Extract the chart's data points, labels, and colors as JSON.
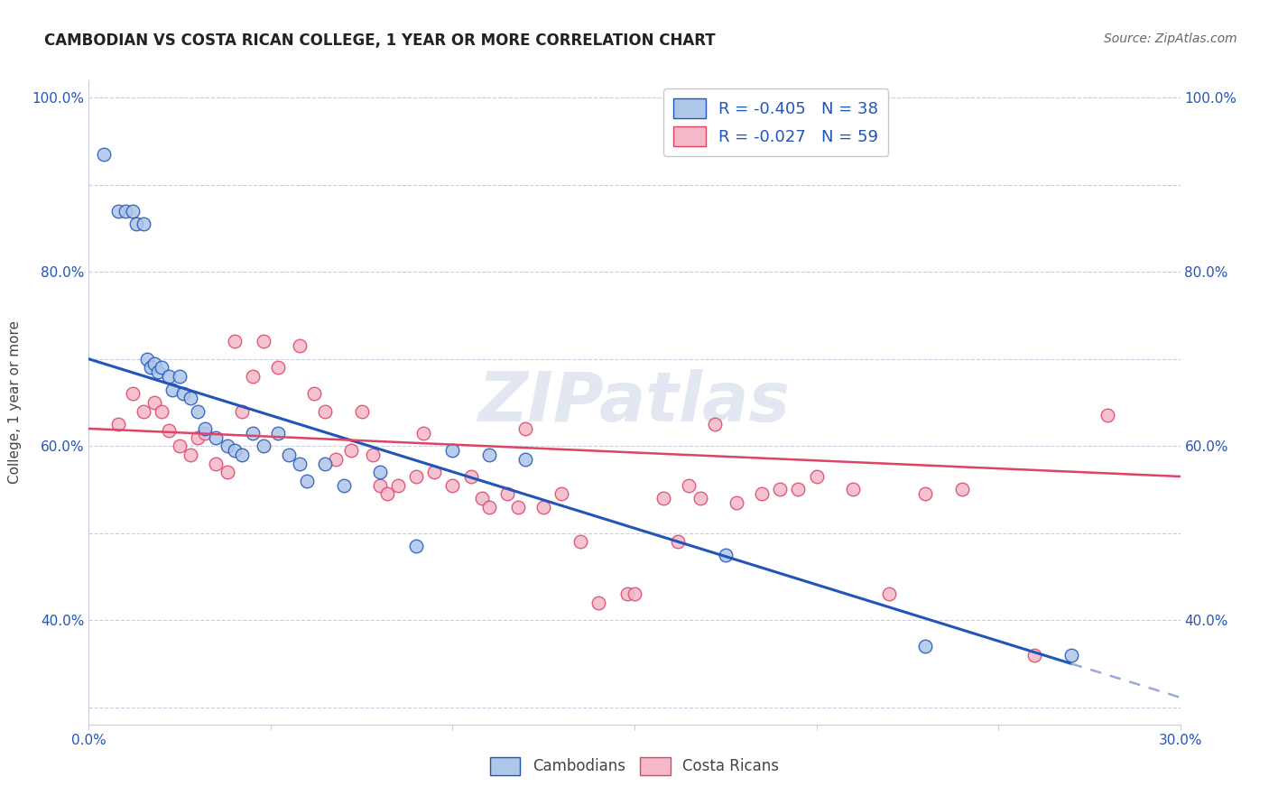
{
  "title": "CAMBODIAN VS COSTA RICAN COLLEGE, 1 YEAR OR MORE CORRELATION CHART",
  "source": "Source: ZipAtlas.com",
  "ylabel": "College, 1 year or more",
  "xlim": [
    0.0,
    0.3
  ],
  "ylim": [
    0.28,
    1.02
  ],
  "xtick_positions": [
    0.0,
    0.05,
    0.1,
    0.15,
    0.2,
    0.25,
    0.3
  ],
  "xticklabels": [
    "0.0%",
    "",
    "",
    "",
    "",
    "",
    "30.0%"
  ],
  "ytick_positions": [
    0.3,
    0.4,
    0.5,
    0.6,
    0.7,
    0.8,
    0.9,
    1.0
  ],
  "ytick_labels_left": [
    "",
    "40.0%",
    "",
    "60.0%",
    "",
    "80.0%",
    "",
    "100.0%"
  ],
  "ytick_labels_right": [
    "",
    "40.0%",
    "",
    "60.0%",
    "",
    "80.0%",
    "",
    "100.0%"
  ],
  "legend_r1": "R = -0.405",
  "legend_n1": "N = 38",
  "legend_r2": "R = -0.027",
  "legend_n2": "N = 59",
  "cambodian_color": "#aec6e8",
  "costa_rican_color": "#f4b8c8",
  "line_blue": "#2255bb",
  "line_pink": "#dd4466",
  "line_dashed_color": "#99aad4",
  "watermark": "ZIPatlas",
  "blue_line_x0": 0.0,
  "blue_line_y0": 0.7,
  "blue_line_x1": 0.27,
  "blue_line_y1": 0.35,
  "pink_line_x0": 0.0,
  "pink_line_y0": 0.62,
  "pink_line_x1": 0.3,
  "pink_line_y1": 0.565,
  "cambodian_x": [
    0.004,
    0.008,
    0.01,
    0.012,
    0.013,
    0.015,
    0.016,
    0.017,
    0.018,
    0.019,
    0.02,
    0.022,
    0.023,
    0.025,
    0.026,
    0.028,
    0.03,
    0.032,
    0.035,
    0.038,
    0.04,
    0.042,
    0.045,
    0.048,
    0.052,
    0.055,
    0.058,
    0.06,
    0.065,
    0.07,
    0.08,
    0.09,
    0.1,
    0.11,
    0.12,
    0.175,
    0.23,
    0.27
  ],
  "cambodian_y": [
    0.935,
    0.87,
    0.87,
    0.87,
    0.855,
    0.855,
    0.7,
    0.69,
    0.695,
    0.685,
    0.69,
    0.68,
    0.665,
    0.68,
    0.66,
    0.655,
    0.64,
    0.62,
    0.61,
    0.6,
    0.595,
    0.59,
    0.615,
    0.6,
    0.615,
    0.59,
    0.58,
    0.56,
    0.58,
    0.555,
    0.57,
    0.485,
    0.595,
    0.59,
    0.585,
    0.475,
    0.37,
    0.36
  ],
  "costa_rican_x": [
    0.008,
    0.012,
    0.015,
    0.018,
    0.02,
    0.022,
    0.025,
    0.028,
    0.03,
    0.032,
    0.035,
    0.038,
    0.04,
    0.042,
    0.045,
    0.048,
    0.052,
    0.058,
    0.062,
    0.065,
    0.068,
    0.072,
    0.075,
    0.078,
    0.08,
    0.082,
    0.085,
    0.09,
    0.092,
    0.095,
    0.1,
    0.105,
    0.108,
    0.11,
    0.115,
    0.118,
    0.12,
    0.125,
    0.13,
    0.135,
    0.14,
    0.148,
    0.15,
    0.158,
    0.162,
    0.165,
    0.168,
    0.172,
    0.178,
    0.185,
    0.19,
    0.195,
    0.2,
    0.21,
    0.22,
    0.23,
    0.24,
    0.26,
    0.28
  ],
  "costa_rican_y": [
    0.625,
    0.66,
    0.64,
    0.65,
    0.64,
    0.618,
    0.6,
    0.59,
    0.61,
    0.615,
    0.58,
    0.57,
    0.72,
    0.64,
    0.68,
    0.72,
    0.69,
    0.715,
    0.66,
    0.64,
    0.585,
    0.595,
    0.64,
    0.59,
    0.555,
    0.545,
    0.555,
    0.565,
    0.615,
    0.57,
    0.555,
    0.565,
    0.54,
    0.53,
    0.545,
    0.53,
    0.62,
    0.53,
    0.545,
    0.49,
    0.42,
    0.43,
    0.43,
    0.54,
    0.49,
    0.555,
    0.54,
    0.625,
    0.535,
    0.545,
    0.55,
    0.55,
    0.565,
    0.55,
    0.43,
    0.545,
    0.55,
    0.36,
    0.635
  ]
}
